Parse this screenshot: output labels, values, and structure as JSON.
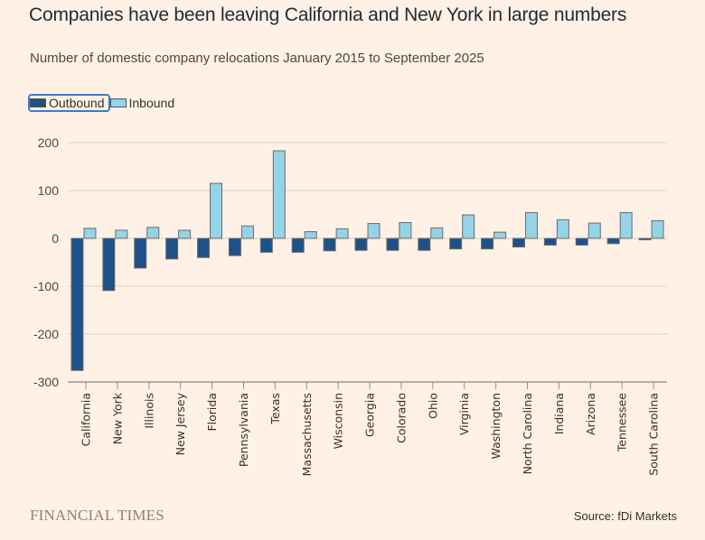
{
  "header": {
    "title": "Companies have been leaving California and New York in large numbers",
    "subtitle": "Number of domestic company relocations January 2015 to September 2025"
  },
  "legend": [
    {
      "label": "Outbound",
      "color": "#1f5189",
      "focused": true
    },
    {
      "label": "Inbound",
      "color": "#95d3e6",
      "focused": false
    }
  ],
  "footer": {
    "brand": "FINANCIAL TIMES",
    "source": "Source: fDi Markets"
  },
  "colors": {
    "background": "#fff1e6",
    "gridline": "#d9cec6",
    "outbound": "#1f5189",
    "inbound": "#95d3e6",
    "bar_stroke": "#6b6b6b"
  },
  "chart_data": {
    "type": "bar",
    "title": "Companies have been leaving California and New York in large numbers",
    "subtitle": "Number of domestic company relocations January 2015 to September 2025",
    "xlabel": "",
    "ylabel": "",
    "ylim": [
      -300,
      200
    ],
    "yticks": [
      200,
      100,
      0,
      -100,
      -200,
      -300
    ],
    "grid": true,
    "legend_position": "top-left",
    "categories": [
      "California",
      "New York",
      "Illinois",
      "New Jersey",
      "Florida",
      "Pennsylvania",
      "Texas",
      "Massachusetts",
      "Wisconsin",
      "Georgia",
      "Colorado",
      "Ohio",
      "Virginia",
      "Washington",
      "North Carolina",
      "Indiana",
      "Arizona",
      "Tennessee",
      "South Carolina"
    ],
    "series": [
      {
        "name": "Outbound",
        "values": [
          -276,
          -109,
          -62,
          -43,
          -40,
          -36,
          -29,
          -29,
          -26,
          -25,
          -25,
          -25,
          -22,
          -22,
          -18,
          -14,
          -14,
          -11,
          -3
        ]
      },
      {
        "name": "Inbound",
        "values": [
          21,
          17,
          23,
          17,
          115,
          26,
          183,
          14,
          20,
          31,
          33,
          22,
          49,
          13,
          54,
          39,
          32,
          54,
          37
        ]
      }
    ]
  }
}
